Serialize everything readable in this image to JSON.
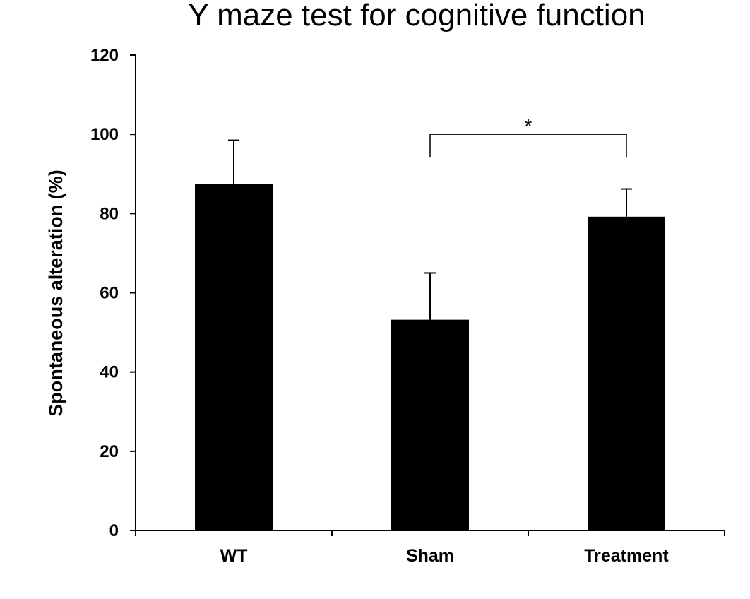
{
  "chart_data": {
    "type": "bar",
    "title": "Y maze test for cognitive function",
    "xlabel": "",
    "ylabel": "Spontaneous alteration (%)",
    "categories": [
      "WT",
      "Sham",
      "Treatment"
    ],
    "values": [
      87.5,
      53.2,
      79.2
    ],
    "error": [
      11.0,
      11.8,
      7.0
    ],
    "ylim": [
      0,
      120
    ],
    "yticks": [
      0,
      20,
      40,
      60,
      80,
      100,
      120
    ],
    "ytick_labels": [
      "0",
      "20",
      "40",
      "60",
      "80",
      "100",
      "120"
    ],
    "grid": false,
    "bar_color": "#000000",
    "annotations": [
      {
        "type": "significance-bracket",
        "from": "Sham",
        "to": "Treatment",
        "level": 100,
        "label": "*"
      }
    ]
  }
}
